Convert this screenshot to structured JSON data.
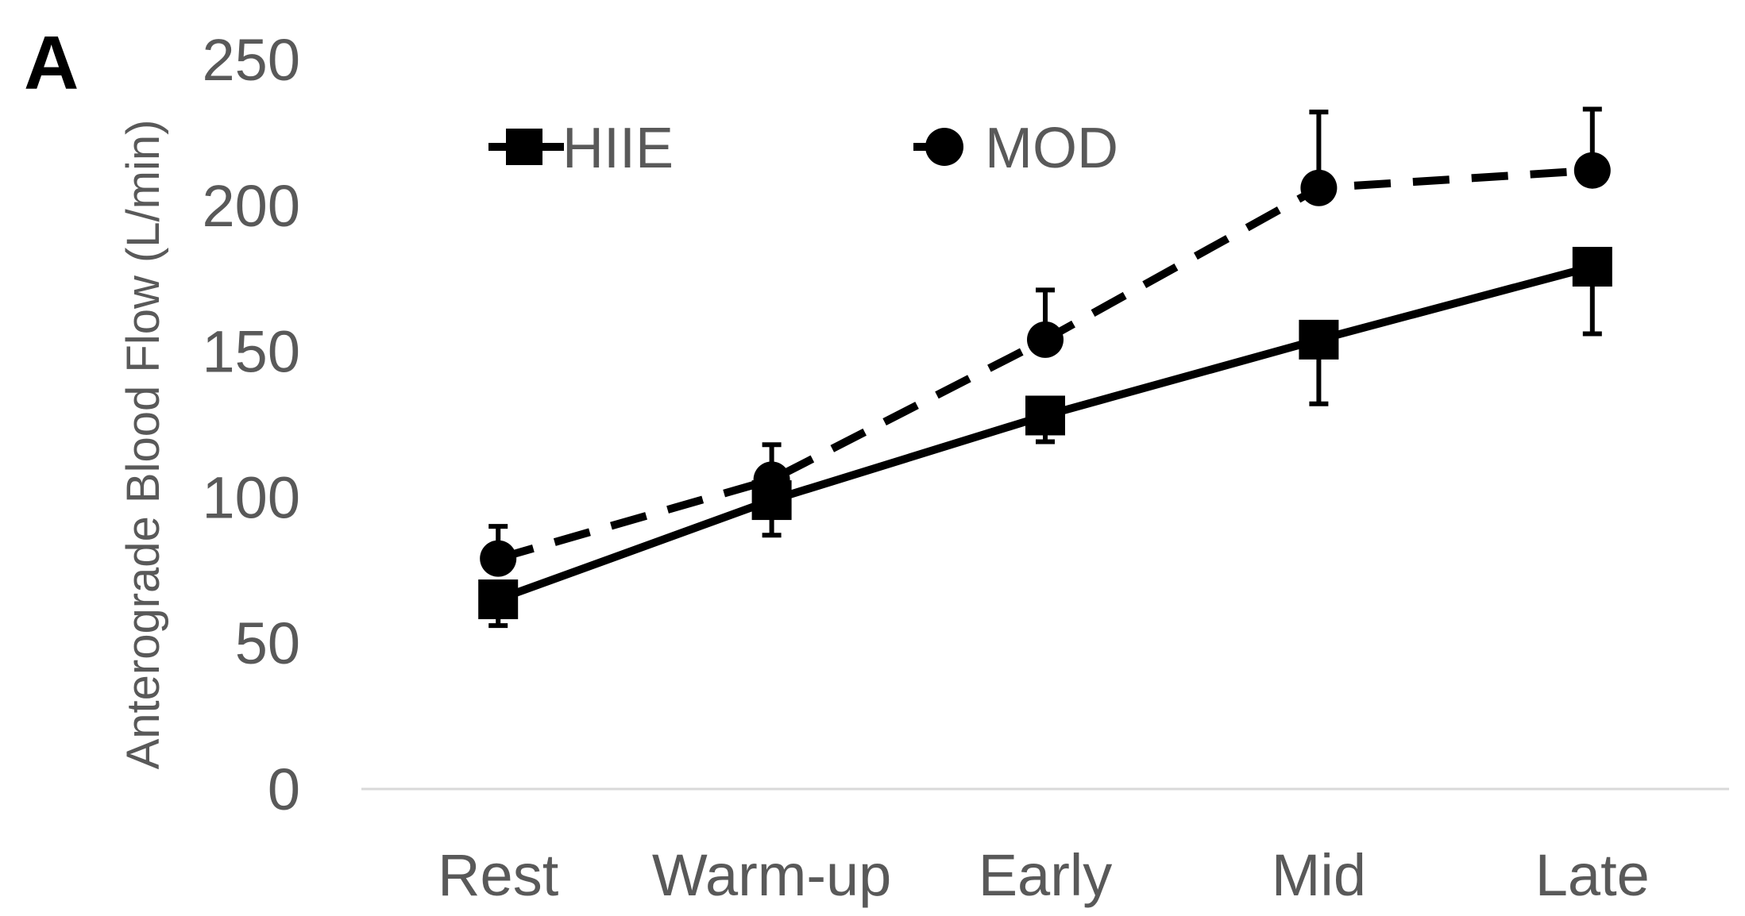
{
  "chart_data": {
    "type": "line",
    "panel_label": "A",
    "categories": [
      "Rest",
      "Warm-up",
      "Early",
      "Mid",
      "Late"
    ],
    "ylabel": "Anterograde Blood Flow (L/min)",
    "ylim": [
      0,
      250
    ],
    "yticks": [
      "0",
      "50",
      "100",
      "150",
      "200",
      "250"
    ],
    "legend_position": "top-left",
    "grid": false,
    "series": [
      {
        "name": "HIIE",
        "marker": "square",
        "line_style": "solid",
        "values": [
          65,
          99,
          128,
          154,
          179
        ],
        "error": [
          9,
          12,
          9,
          22,
          23
        ]
      },
      {
        "name": "MOD",
        "marker": "circle",
        "line_style": "dashed",
        "values": [
          79,
          106,
          154,
          206,
          212
        ],
        "error": [
          11,
          12,
          17,
          26,
          21
        ]
      }
    ],
    "colors": {
      "series": "#000000",
      "text": "#595959",
      "axis": "#d9d9d9"
    }
  }
}
